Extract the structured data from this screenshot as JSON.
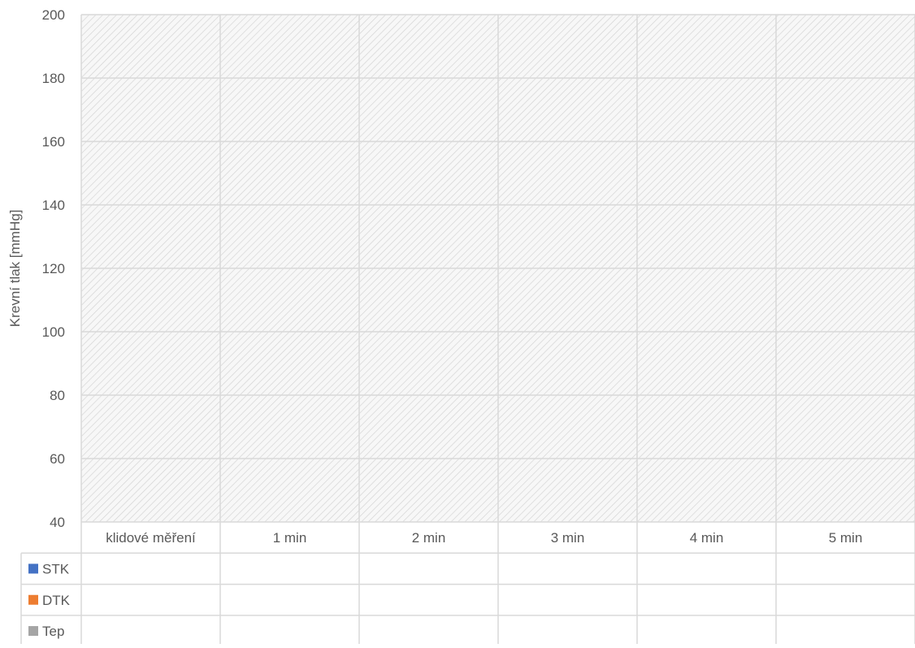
{
  "chart_data": {
    "type": "table",
    "title": "",
    "xlabel": "",
    "ylabel": "Krevní tlak [mmHg]",
    "ylim": [
      40,
      200
    ],
    "y_ticks": [
      40,
      60,
      80,
      100,
      120,
      140,
      160,
      180,
      200
    ],
    "categories": [
      "klidové měření",
      "1 min",
      "2 min",
      "3 min",
      "4 min",
      "5 min"
    ],
    "series": [
      {
        "name": "STK",
        "color": "#4472C4",
        "values": [
          null,
          null,
          null,
          null,
          null,
          null
        ]
      },
      {
        "name": "DTK",
        "color": "#ED7D31",
        "values": [
          null,
          null,
          null,
          null,
          null,
          null
        ]
      },
      {
        "name": "Tep",
        "color": "#A5A5A5",
        "values": [
          null,
          null,
          null,
          null,
          null,
          null
        ]
      }
    ],
    "grid": true,
    "legend": "data-table"
  }
}
